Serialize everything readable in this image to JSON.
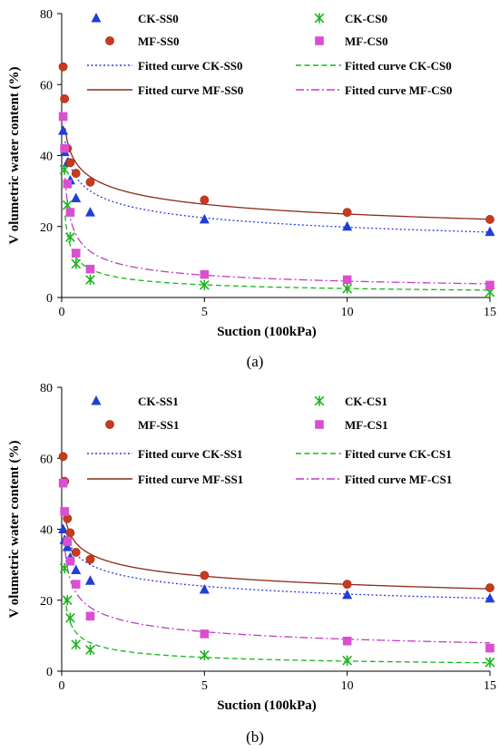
{
  "chart_data": [
    {
      "type": "scatter",
      "panel_label": "(a)",
      "xlabel": "Suction (100kPa)",
      "ylabel": "V olumetric water content (%)",
      "xlim": [
        0,
        15
      ],
      "ylim": [
        0,
        80
      ],
      "xticks": [
        "0",
        "5",
        "10",
        "15"
      ],
      "yticks": [
        "0",
        "20",
        "40",
        "60",
        "80"
      ],
      "legend_position": "top",
      "series": [
        {
          "name": "CK-SS0",
          "marker": "triangle",
          "color": "#1f3fd6",
          "x": [
            0.05,
            0.1,
            0.2,
            0.3,
            0.5,
            1,
            5,
            10,
            15
          ],
          "y": [
            47,
            41,
            38,
            33,
            28,
            24,
            22,
            20,
            18.5
          ]
        },
        {
          "name": "CK-CS0",
          "marker": "asterisk",
          "color": "#19b51c",
          "x": [
            0.1,
            0.2,
            0.3,
            0.5,
            1,
            5,
            10,
            15
          ],
          "y": [
            36,
            26,
            17,
            9.5,
            5,
            3.5,
            2.5,
            1.5
          ]
        },
        {
          "name": "MF-SS0",
          "marker": "circle",
          "color": "#c83a1e",
          "x": [
            0.05,
            0.1,
            0.2,
            0.3,
            0.5,
            1,
            5,
            10,
            15
          ],
          "y": [
            65,
            56,
            42,
            38,
            35,
            32.5,
            27.5,
            24,
            22
          ]
        },
        {
          "name": "MF-CS0",
          "marker": "square",
          "color": "#d94fd0",
          "x": [
            0.05,
            0.1,
            0.2,
            0.3,
            0.5,
            1,
            5,
            10,
            15
          ],
          "y": [
            51,
            42,
            32,
            24,
            12.5,
            8,
            6.5,
            5,
            3.5
          ]
        }
      ],
      "fits": [
        {
          "name": "Fitted curve CK-SS0",
          "style": "dotted",
          "color": "#2d3de0",
          "a": 30,
          "b": 0.18
        },
        {
          "name": "Fitted curve CK-CS0",
          "style": "dashed",
          "color": "#19b51c",
          "a": 8,
          "b": 0.5
        },
        {
          "name": "Fitted curve MF-SS0",
          "style": "solid",
          "color": "#8b2a1a",
          "a": 34,
          "b": 0.16
        },
        {
          "name": "Fitted curve MF-CS0",
          "style": "dashdot",
          "color": "#c03fc0",
          "a": 13,
          "b": 0.45
        }
      ]
    },
    {
      "type": "scatter",
      "panel_label": "(b)",
      "xlabel": "Suction (100kPa)",
      "ylabel": "V olumetric water content (%)",
      "xlim": [
        0,
        15
      ],
      "ylim": [
        0,
        80
      ],
      "xticks": [
        "0",
        "5",
        "10",
        "15"
      ],
      "yticks": [
        "0",
        "20",
        "40",
        "60",
        "80"
      ],
      "legend_position": "top",
      "series": [
        {
          "name": "CK-SS1",
          "marker": "triangle",
          "color": "#1f3fd6",
          "x": [
            0.05,
            0.1,
            0.2,
            0.3,
            0.5,
            1,
            5,
            10,
            15
          ],
          "y": [
            40,
            37,
            35,
            32,
            28.5,
            25.5,
            23,
            21.5,
            20.5
          ]
        },
        {
          "name": "CK-CS1",
          "marker": "asterisk",
          "color": "#19b51c",
          "x": [
            0.1,
            0.2,
            0.3,
            0.5,
            1,
            5,
            10,
            15
          ],
          "y": [
            29,
            20,
            15,
            7.5,
            6,
            4.5,
            3,
            2.5
          ]
        },
        {
          "name": "MF-SS1",
          "marker": "circle",
          "color": "#c83a1e",
          "x": [
            0.05,
            0.1,
            0.2,
            0.3,
            0.5,
            1,
            5,
            10,
            15
          ],
          "y": [
            60.5,
            53.5,
            43,
            39,
            33.5,
            31.5,
            27,
            24.5,
            23.5
          ]
        },
        {
          "name": "MF-CS1",
          "marker": "square",
          "color": "#d94fd0",
          "x": [
            0.05,
            0.1,
            0.2,
            0.3,
            0.5,
            1,
            5,
            10,
            15
          ],
          "y": [
            53,
            45,
            36.5,
            31,
            24.5,
            15.5,
            10.5,
            8.5,
            6.5
          ]
        }
      ],
      "fits": [
        {
          "name": "Fitted curve CK-SS1",
          "style": "dotted",
          "color": "#2d3de0",
          "a": 30,
          "b": 0.14
        },
        {
          "name": "Fitted curve CK-CS1",
          "style": "dashed",
          "color": "#19b51c",
          "a": 8,
          "b": 0.45
        },
        {
          "name": "Fitted curve MF-SS1",
          "style": "solid",
          "color": "#8b2a1a",
          "a": 33,
          "b": 0.13
        },
        {
          "name": "Fitted curve MF-CS1",
          "style": "dashdot",
          "color": "#c03fc0",
          "a": 18,
          "b": 0.3
        }
      ]
    }
  ]
}
